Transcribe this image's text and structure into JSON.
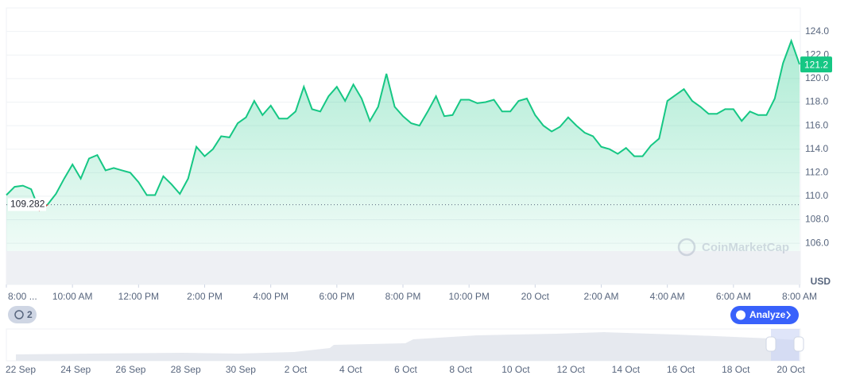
{
  "chart_data": {
    "type": "line",
    "color": "#16c784",
    "down_color": "#ea3943",
    "x": [
      0,
      0.25,
      0.5,
      0.75,
      1,
      1.25,
      1.5,
      1.75,
      2,
      2.25,
      2.5,
      2.75,
      3,
      3.25,
      3.5,
      3.75,
      4,
      4.25,
      4.5,
      4.75,
      5,
      5.25,
      5.5,
      5.75,
      6,
      6.25,
      6.5,
      6.75,
      7,
      7.25,
      7.5,
      7.75,
      8,
      8.25,
      8.5,
      8.75,
      9,
      9.25,
      9.5,
      9.75,
      10,
      10.25,
      10.5,
      10.75,
      11,
      11.25,
      11.5,
      11.75,
      12,
      12.25,
      12.5,
      12.75,
      13,
      13.25,
      13.5,
      13.75,
      14,
      14.25,
      14.5,
      14.75,
      15,
      15.25,
      15.5,
      15.75,
      16,
      16.25,
      16.5,
      16.75,
      17,
      17.25,
      17.5,
      17.75,
      18,
      18.25,
      18.5,
      18.75,
      19,
      19.25,
      19.5,
      19.75,
      20,
      20.25,
      20.5,
      20.75,
      21,
      21.25,
      21.5,
      21.75,
      22,
      22.25,
      22.5,
      22.75,
      23,
      23.25,
      23.5,
      23.75,
      24
    ],
    "values": [
      110.1,
      110.8,
      110.9,
      110.6,
      108.8,
      109.3,
      110.2,
      111.5,
      112.7,
      111.5,
      113.2,
      113.5,
      112.2,
      112.4,
      112.2,
      112.0,
      111.2,
      110.1,
      110.1,
      111.7,
      111.0,
      110.2,
      111.5,
      114.2,
      113.4,
      114.0,
      115.1,
      115.0,
      116.2,
      116.7,
      118.1,
      116.9,
      117.7,
      116.6,
      116.6,
      117.2,
      119.3,
      117.4,
      117.2,
      118.5,
      119.3,
      118.1,
      119.5,
      118.3,
      116.4,
      117.6,
      120.4,
      117.6,
      116.8,
      116.2,
      116.0,
      117.2,
      118.5,
      116.8,
      116.9,
      118.2,
      118.2,
      117.9,
      118.0,
      118.2,
      117.2,
      117.2,
      118.1,
      118.3,
      116.9,
      116.0,
      115.5,
      115.9,
      116.7,
      116.0,
      115.4,
      115.1,
      114.2,
      114.0,
      113.6,
      114.1,
      113.4,
      113.4,
      114.3,
      114.9,
      118.1,
      118.6,
      119.1,
      118.1,
      117.6,
      117.0,
      117.0,
      117.4,
      117.4,
      116.4,
      117.2,
      116.9,
      116.9,
      118.3,
      121.3,
      123.2,
      121.2
    ],
    "reference_line": 109.282,
    "xlim": [
      0,
      24
    ],
    "ylim": [
      102.5,
      126
    ],
    "xticks": [
      {
        "value": 0,
        "label": "8:00 ..."
      },
      {
        "value": 2,
        "label": "10:00 AM"
      },
      {
        "value": 4,
        "label": "12:00 PM"
      },
      {
        "value": 6,
        "label": "2:00 PM"
      },
      {
        "value": 8,
        "label": "4:00 PM"
      },
      {
        "value": 10,
        "label": "6:00 PM"
      },
      {
        "value": 12,
        "label": "8:00 PM"
      },
      {
        "value": 14,
        "label": "10:00 PM"
      },
      {
        "value": 16,
        "label": "20 Oct"
      },
      {
        "value": 18,
        "label": "2:00 AM"
      },
      {
        "value": 20,
        "label": "4:00 AM"
      },
      {
        "value": 22,
        "label": "6:00 AM"
      },
      {
        "value": 24,
        "label": "8:00 AM"
      }
    ],
    "yticks": [
      {
        "value": 106,
        "label": "106.0"
      },
      {
        "value": 108,
        "label": "108.0"
      },
      {
        "value": 110,
        "label": "110.0"
      },
      {
        "value": 112,
        "label": "112.0"
      },
      {
        "value": 114,
        "label": "114.0"
      },
      {
        "value": 116,
        "label": "116.0"
      },
      {
        "value": 118,
        "label": "118.0"
      },
      {
        "value": 120,
        "label": "120.0"
      },
      {
        "value": 122,
        "label": "122.0"
      },
      {
        "value": 124,
        "label": "124.0"
      }
    ],
    "grid": true,
    "currency": "USD",
    "watermark": "CoinMarketCap"
  },
  "controls": {
    "history_count": "2",
    "analyze_button": "Analyze"
  },
  "navigator": {
    "dates": [
      "22 Sep",
      "24 Sep",
      "26 Sep",
      "28 Sep",
      "30 Sep",
      "2 Oct",
      "4 Oct",
      "6 Oct",
      "8 Oct",
      "10 Oct",
      "12 Oct",
      "14 Oct",
      "16 Oct",
      "18 Oct",
      "20 Oct"
    ]
  }
}
